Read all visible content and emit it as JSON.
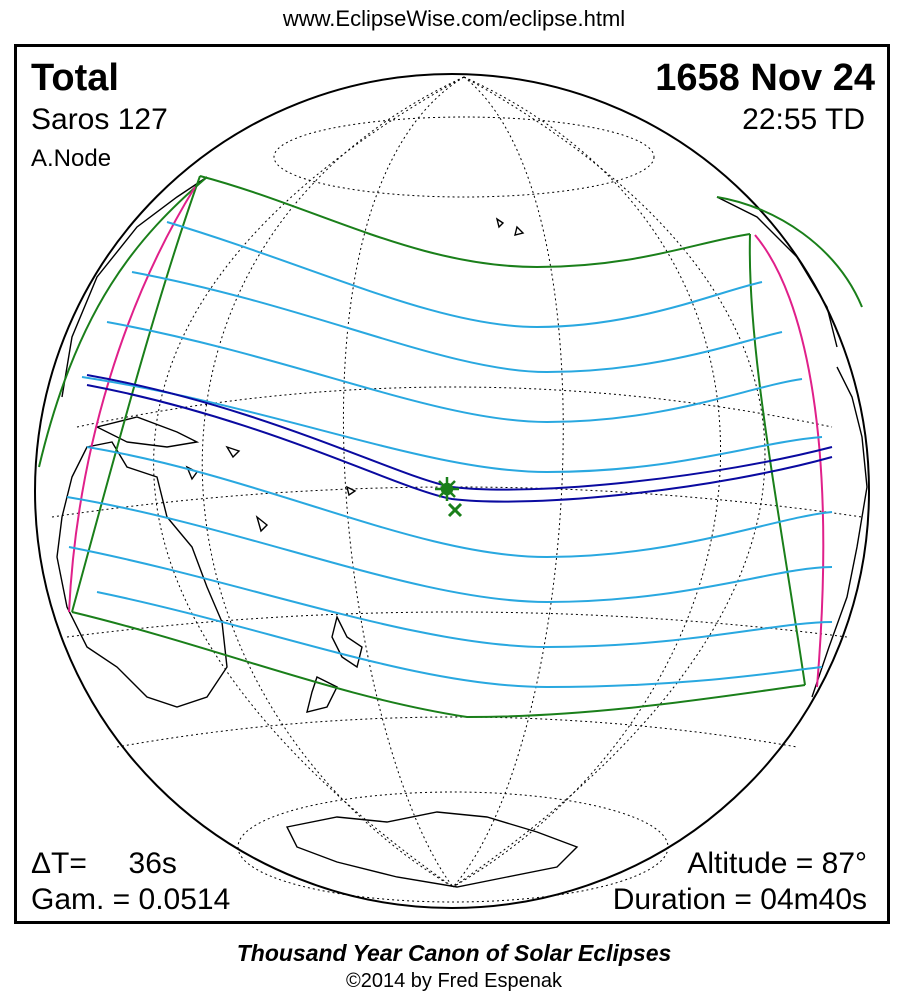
{
  "header_url": "www.EclipseWise.com/eclipse.html",
  "eclipse": {
    "type": "Total",
    "date": "1658 Nov 24",
    "saros": "Saros 127",
    "time": "22:55 TD",
    "node": "A.Node",
    "delta_t": "ΔT=     36s",
    "gamma": "Gam. = 0.0514",
    "altitude": "Altitude = 87°",
    "duration": "Duration = 04m40s"
  },
  "footer": {
    "canon": "Thousand Year Canon of Solar Eclipses",
    "copyright": "©2014 by Fred Espenak"
  },
  "colors": {
    "penumbra_limits": "#1a7f1a",
    "umbra_path": "#0a0aa0",
    "penumbral_lines": "#29a8e0",
    "rise_set_curves": "#e0208a",
    "coastlines": "#000000",
    "graticule": "#000000",
    "markers": "#1a7f1a"
  }
}
